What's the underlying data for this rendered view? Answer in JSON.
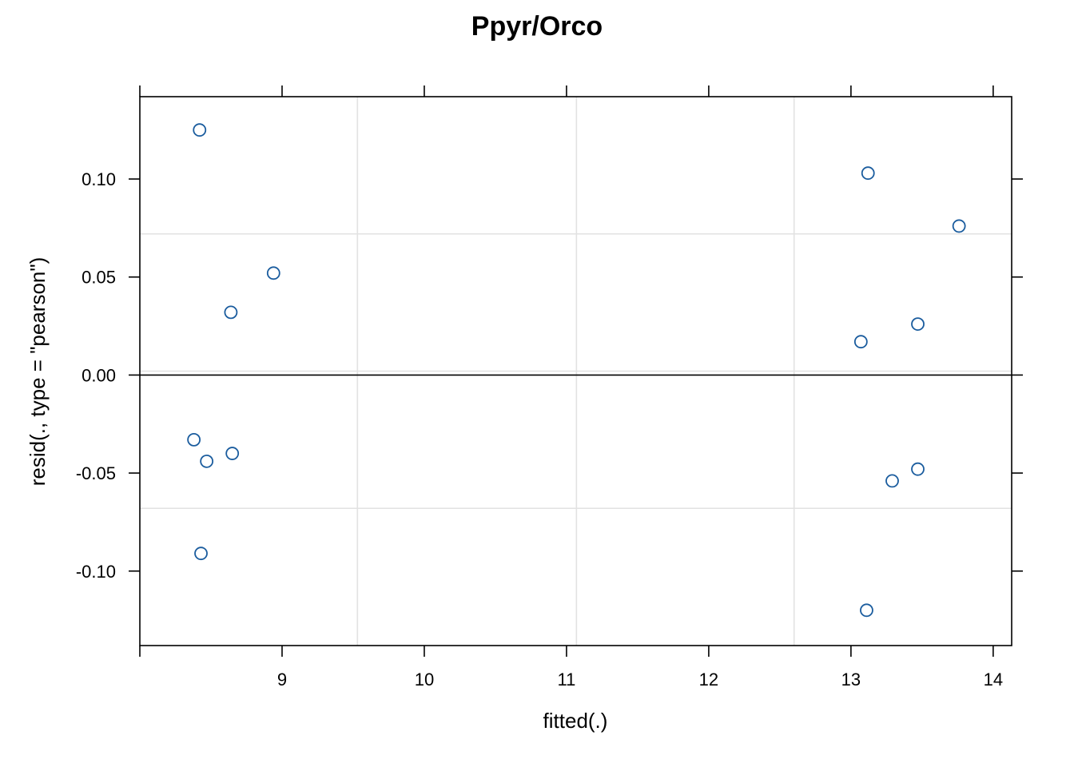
{
  "chart_data": {
    "type": "scatter",
    "title": "Ppyr/Orco",
    "xlabel": "fitted(.)",
    "ylabel": "resid(., type = \"pearson\")",
    "xlim": [
      8.0,
      14.13
    ],
    "ylim": [
      -0.138,
      0.142
    ],
    "x_ticks": [
      9,
      10,
      11,
      12,
      13,
      14
    ],
    "x_tick_labels": [
      "9",
      "10",
      "11",
      "12",
      "13",
      "14"
    ],
    "y_ticks": [
      -0.1,
      -0.05,
      0.0,
      0.05,
      0.1
    ],
    "y_tick_labels": [
      "-0.10",
      "-0.05",
      "0.00",
      "0.05",
      "0.10"
    ],
    "grid_x": [
      9.53,
      11.07,
      12.6
    ],
    "grid_y": [
      -0.068,
      0.002,
      0.072
    ],
    "reference_line_y": 0,
    "colors": {
      "point": "#1a5c9e"
    },
    "points": [
      {
        "x": 8.42,
        "y": 0.125
      },
      {
        "x": 8.94,
        "y": 0.052
      },
      {
        "x": 8.64,
        "y": 0.032
      },
      {
        "x": 8.38,
        "y": -0.033
      },
      {
        "x": 8.47,
        "y": -0.044
      },
      {
        "x": 8.65,
        "y": -0.04
      },
      {
        "x": 8.43,
        "y": -0.091
      },
      {
        "x": 13.12,
        "y": 0.103
      },
      {
        "x": 13.76,
        "y": 0.076
      },
      {
        "x": 13.47,
        "y": 0.026
      },
      {
        "x": 13.07,
        "y": 0.017
      },
      {
        "x": 13.47,
        "y": -0.048
      },
      {
        "x": 13.29,
        "y": -0.054
      },
      {
        "x": 13.11,
        "y": -0.12
      }
    ]
  }
}
